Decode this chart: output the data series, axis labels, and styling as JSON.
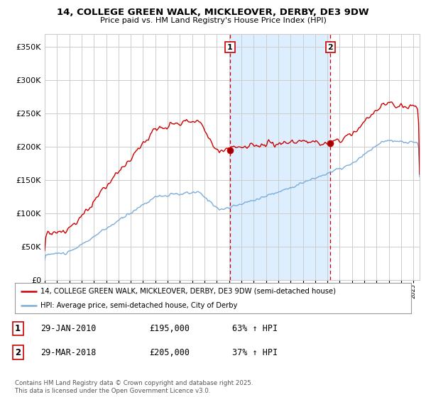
{
  "title": "14, COLLEGE GREEN WALK, MICKLEOVER, DERBY, DE3 9DW",
  "subtitle": "Price paid vs. HM Land Registry's House Price Index (HPI)",
  "legend_line1": "14, COLLEGE GREEN WALK, MICKLEOVER, DERBY, DE3 9DW (semi-detached house)",
  "legend_line2": "HPI: Average price, semi-detached house, City of Derby",
  "footer": "Contains HM Land Registry data © Crown copyright and database right 2025.\nThis data is licensed under the Open Government Licence v3.0.",
  "sale1_label": "1",
  "sale1_date": "29-JAN-2010",
  "sale1_price": "£195,000",
  "sale1_hpi": "63% ↑ HPI",
  "sale2_label": "2",
  "sale2_date": "29-MAR-2018",
  "sale2_price": "£205,000",
  "sale2_hpi": "37% ↑ HPI",
  "sale1_x": 2010.08,
  "sale2_x": 2018.25,
  "sale1_y": 195000,
  "sale2_y": 205000,
  "vline1_x": 2010.08,
  "vline2_x": 2018.25,
  "red_color": "#cc0000",
  "blue_color": "#7aaddb",
  "shade_color": "#ddeeff",
  "ylim": [
    0,
    370000
  ],
  "xlim_start": 1995,
  "xlim_end": 2025.5,
  "background_color": "#ffffff",
  "grid_color": "#cccccc"
}
